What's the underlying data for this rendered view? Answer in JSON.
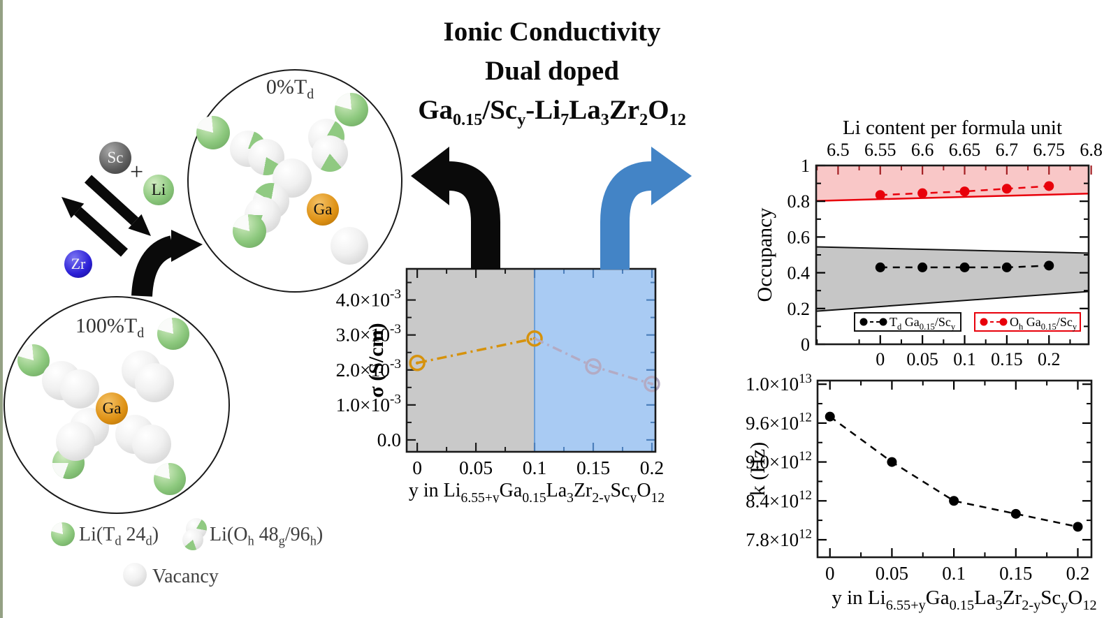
{
  "page": {
    "background": "#ffffff",
    "left_strip_color": "#94a184"
  },
  "title": {
    "line1": "Ionic Conductivity",
    "line2": "Dual doped",
    "formula": [
      {
        "t": "Ga"
      },
      {
        "sub": "0.15"
      },
      {
        "t": "/Sc"
      },
      {
        "sub": "y"
      },
      {
        "t": "-Li"
      },
      {
        "sub": "7"
      },
      {
        "t": "La"
      },
      {
        "sub": "3"
      },
      {
        "t": "Zr"
      },
      {
        "sub": "2"
      },
      {
        "t": "O"
      },
      {
        "sub": "12"
      }
    ]
  },
  "structure_panel": {
    "atoms": {
      "sc": "Sc",
      "li": "Li",
      "zr": "Zr",
      "ga": "Ga",
      "plus": "+"
    },
    "colors": {
      "sc": "#5c5c5c",
      "li": "#8cc87d",
      "zr": "#2b1fd6",
      "ga": "#dd9013",
      "vacancy": "#efefef"
    },
    "circle_top_label": [
      {
        "t": "0%T"
      },
      {
        "sub": "d"
      }
    ],
    "circle_bottom_label": [
      {
        "t": "100%T"
      },
      {
        "sub": "d"
      }
    ],
    "legend": {
      "li_td": [
        {
          "t": "Li(T"
        },
        {
          "sub": "d"
        },
        {
          "t": " 24"
        },
        {
          "sub": "d"
        },
        {
          "t": ")"
        }
      ],
      "li_oh": [
        {
          "t": "Li(O"
        },
        {
          "sub": "h"
        },
        {
          "t": " 48"
        },
        {
          "sub": "g"
        },
        {
          "t": "/96"
        },
        {
          "sub": "h"
        },
        {
          "t": ")"
        }
      ],
      "vacancy": "Vacancy"
    }
  },
  "chart_data": [
    {
      "id": "sigma",
      "type": "line",
      "ylabel": "σ (S/cm)",
      "xlabel": [
        {
          "t": "y in Li"
        },
        {
          "sub": "6.55+y"
        },
        {
          "t": "Ga"
        },
        {
          "sub": "0.15"
        },
        {
          "t": "La"
        },
        {
          "sub": "3"
        },
        {
          "t": "Zr"
        },
        {
          "sub": "2-y"
        },
        {
          "t": "Sc"
        },
        {
          "sub": "y"
        },
        {
          "t": "O"
        },
        {
          "sub": "12"
        }
      ],
      "xlim": [
        -0.009,
        0.203
      ],
      "ylim": [
        -0.00034,
        0.00489
      ],
      "xticks": [
        0,
        0.05,
        0.1,
        0.15,
        0.2
      ],
      "xtick_labels": [
        "0",
        "0.05",
        "0.1",
        "0.15",
        "0.2"
      ],
      "yticks": [
        0,
        0.001,
        0.002,
        0.003,
        0.004
      ],
      "ytick_labels": [
        "0.0",
        "1.0×10^-3",
        "2.0×10^-3",
        "3.0×10^-3",
        "4.0×10^-3"
      ],
      "region_boundary": 0.1,
      "regions": [
        {
          "name": "ga-doped-region",
          "from": -0.009,
          "to": 0.1,
          "color": "#c9c9c9"
        },
        {
          "name": "sc-doped-region",
          "from": 0.1,
          "to": 0.203,
          "color": "#a9cbf3"
        }
      ],
      "tick_color_left": "#1a1a1a",
      "tick_color_right": "#4c7fbb",
      "series": [
        {
          "name": "sigma-ga",
          "color": "#d6920c",
          "style": "dashdot",
          "marker": "open-circle-dot",
          "x": [
            0,
            0.1
          ],
          "y": [
            0.0022,
            0.0029
          ]
        },
        {
          "name": "sigma-sc",
          "color": "#b3abc4",
          "style": "dashdot",
          "marker": "open-circle-dot",
          "skip_first_marker": true,
          "x": [
            0.1,
            0.15,
            0.2
          ],
          "y": [
            0.0029,
            0.0021,
            0.0016
          ]
        }
      ]
    },
    {
      "id": "occupancy",
      "type": "line",
      "ylabel": "Occupancy",
      "top_axis_label": "Li content per formula unit",
      "top_ticks": [
        6.5,
        6.55,
        6.6,
        6.65,
        6.7,
        6.75,
        6.8
      ],
      "top_tick_labels": [
        "6.5",
        "6.55",
        "6.6",
        "6.65",
        "6.7",
        "6.75",
        "6.8"
      ],
      "top_axis_offset": 6.55,
      "top_tick_color": "#a32024",
      "xlim": [
        -0.076,
        0.247
      ],
      "ylim": [
        0,
        1
      ],
      "xticks": [
        0,
        0.05,
        0.1,
        0.15,
        0.2
      ],
      "xtick_labels": [
        "0",
        "0.05",
        "0.1",
        "0.15",
        "0.2"
      ],
      "yticks": [
        0,
        0.2,
        0.4,
        0.6,
        0.8,
        1
      ],
      "ytick_labels": [
        "0",
        "0.2",
        "0.4",
        "0.6",
        "0.8",
        "1"
      ],
      "bands": [
        {
          "name": "oh-occupancy-band",
          "fill": "#f9c7c7",
          "edge_color": "#e8000b",
          "edge": "bottom",
          "y_left_top": 1.0,
          "y_right_top": 1.0,
          "y_left_bottom": 0.802,
          "y_right_bottom": 0.843
        },
        {
          "name": "td-occupancy-band",
          "fill": "#c6c6c6",
          "edge_color": "#111111",
          "edge": "all",
          "y_left_top": 0.545,
          "y_right_top": 0.51,
          "y_left_bottom": 0.185,
          "y_right_bottom": 0.295
        }
      ],
      "series": [
        {
          "name": "td-occupancy",
          "color": "#000000",
          "style": "dashed",
          "marker": "filled-circle",
          "label": [
            {
              "t": "T"
            },
            {
              "sub": "d"
            },
            {
              "t": " Ga"
            },
            {
              "sub": "0.15"
            },
            {
              "t": "/Sc"
            },
            {
              "sub": "y"
            }
          ],
          "x": [
            0,
            0.05,
            0.1,
            0.15,
            0.2
          ],
          "y": [
            0.43,
            0.43,
            0.43,
            0.43,
            0.44
          ]
        },
        {
          "name": "oh-occupancy",
          "color": "#e8000b",
          "style": "dashed",
          "marker": "filled-circle",
          "label": [
            {
              "t": "O"
            },
            {
              "sub": "h"
            },
            {
              "t": " Ga"
            },
            {
              "sub": "0.15"
            },
            {
              "t": "/Sc"
            },
            {
              "sub": "y"
            }
          ],
          "x": [
            0,
            0.05,
            0.1,
            0.15,
            0.2
          ],
          "y": [
            0.835,
            0.845,
            0.855,
            0.87,
            0.885
          ]
        }
      ]
    },
    {
      "id": "k",
      "type": "line",
      "ylabel": "k (Hz)",
      "xlabel": [
        {
          "t": "y in Li"
        },
        {
          "sub": "6.55+y"
        },
        {
          "t": "Ga"
        },
        {
          "sub": "0.15"
        },
        {
          "t": "La"
        },
        {
          "sub": "3"
        },
        {
          "t": "Zr"
        },
        {
          "sub": "2-y"
        },
        {
          "t": "Sc"
        },
        {
          "sub": "y"
        },
        {
          "t": "O"
        },
        {
          "sub": "12"
        }
      ],
      "xlim": [
        -0.01,
        0.211
      ],
      "ylim": [
        7530000000000.0,
        10256000000000.0
      ],
      "xticks": [
        0,
        0.05,
        0.1,
        0.15,
        0.2
      ],
      "xtick_labels": [
        "0",
        "0.05",
        "0.1",
        "0.15",
        "0.2"
      ],
      "yticks": [
        7800000000000.0,
        8400000000000.0,
        9000000000000.0,
        9600000000000.0,
        10200000000000.0
      ],
      "ytick_labels": [
        "7.8×10^12",
        "8.4×10^12",
        "9.0×10^12",
        "9.6×10^12",
        "1.0×10^13"
      ],
      "series": [
        {
          "name": "attempt-frequency",
          "color": "#000000",
          "style": "dashed",
          "marker": "filled-circle",
          "x": [
            0,
            0.05,
            0.1,
            0.15,
            0.2
          ],
          "y": [
            9700000000000.0,
            9000000000000.0,
            8400000000000.0,
            8200000000000.0,
            8000000000000.0
          ]
        }
      ]
    }
  ]
}
